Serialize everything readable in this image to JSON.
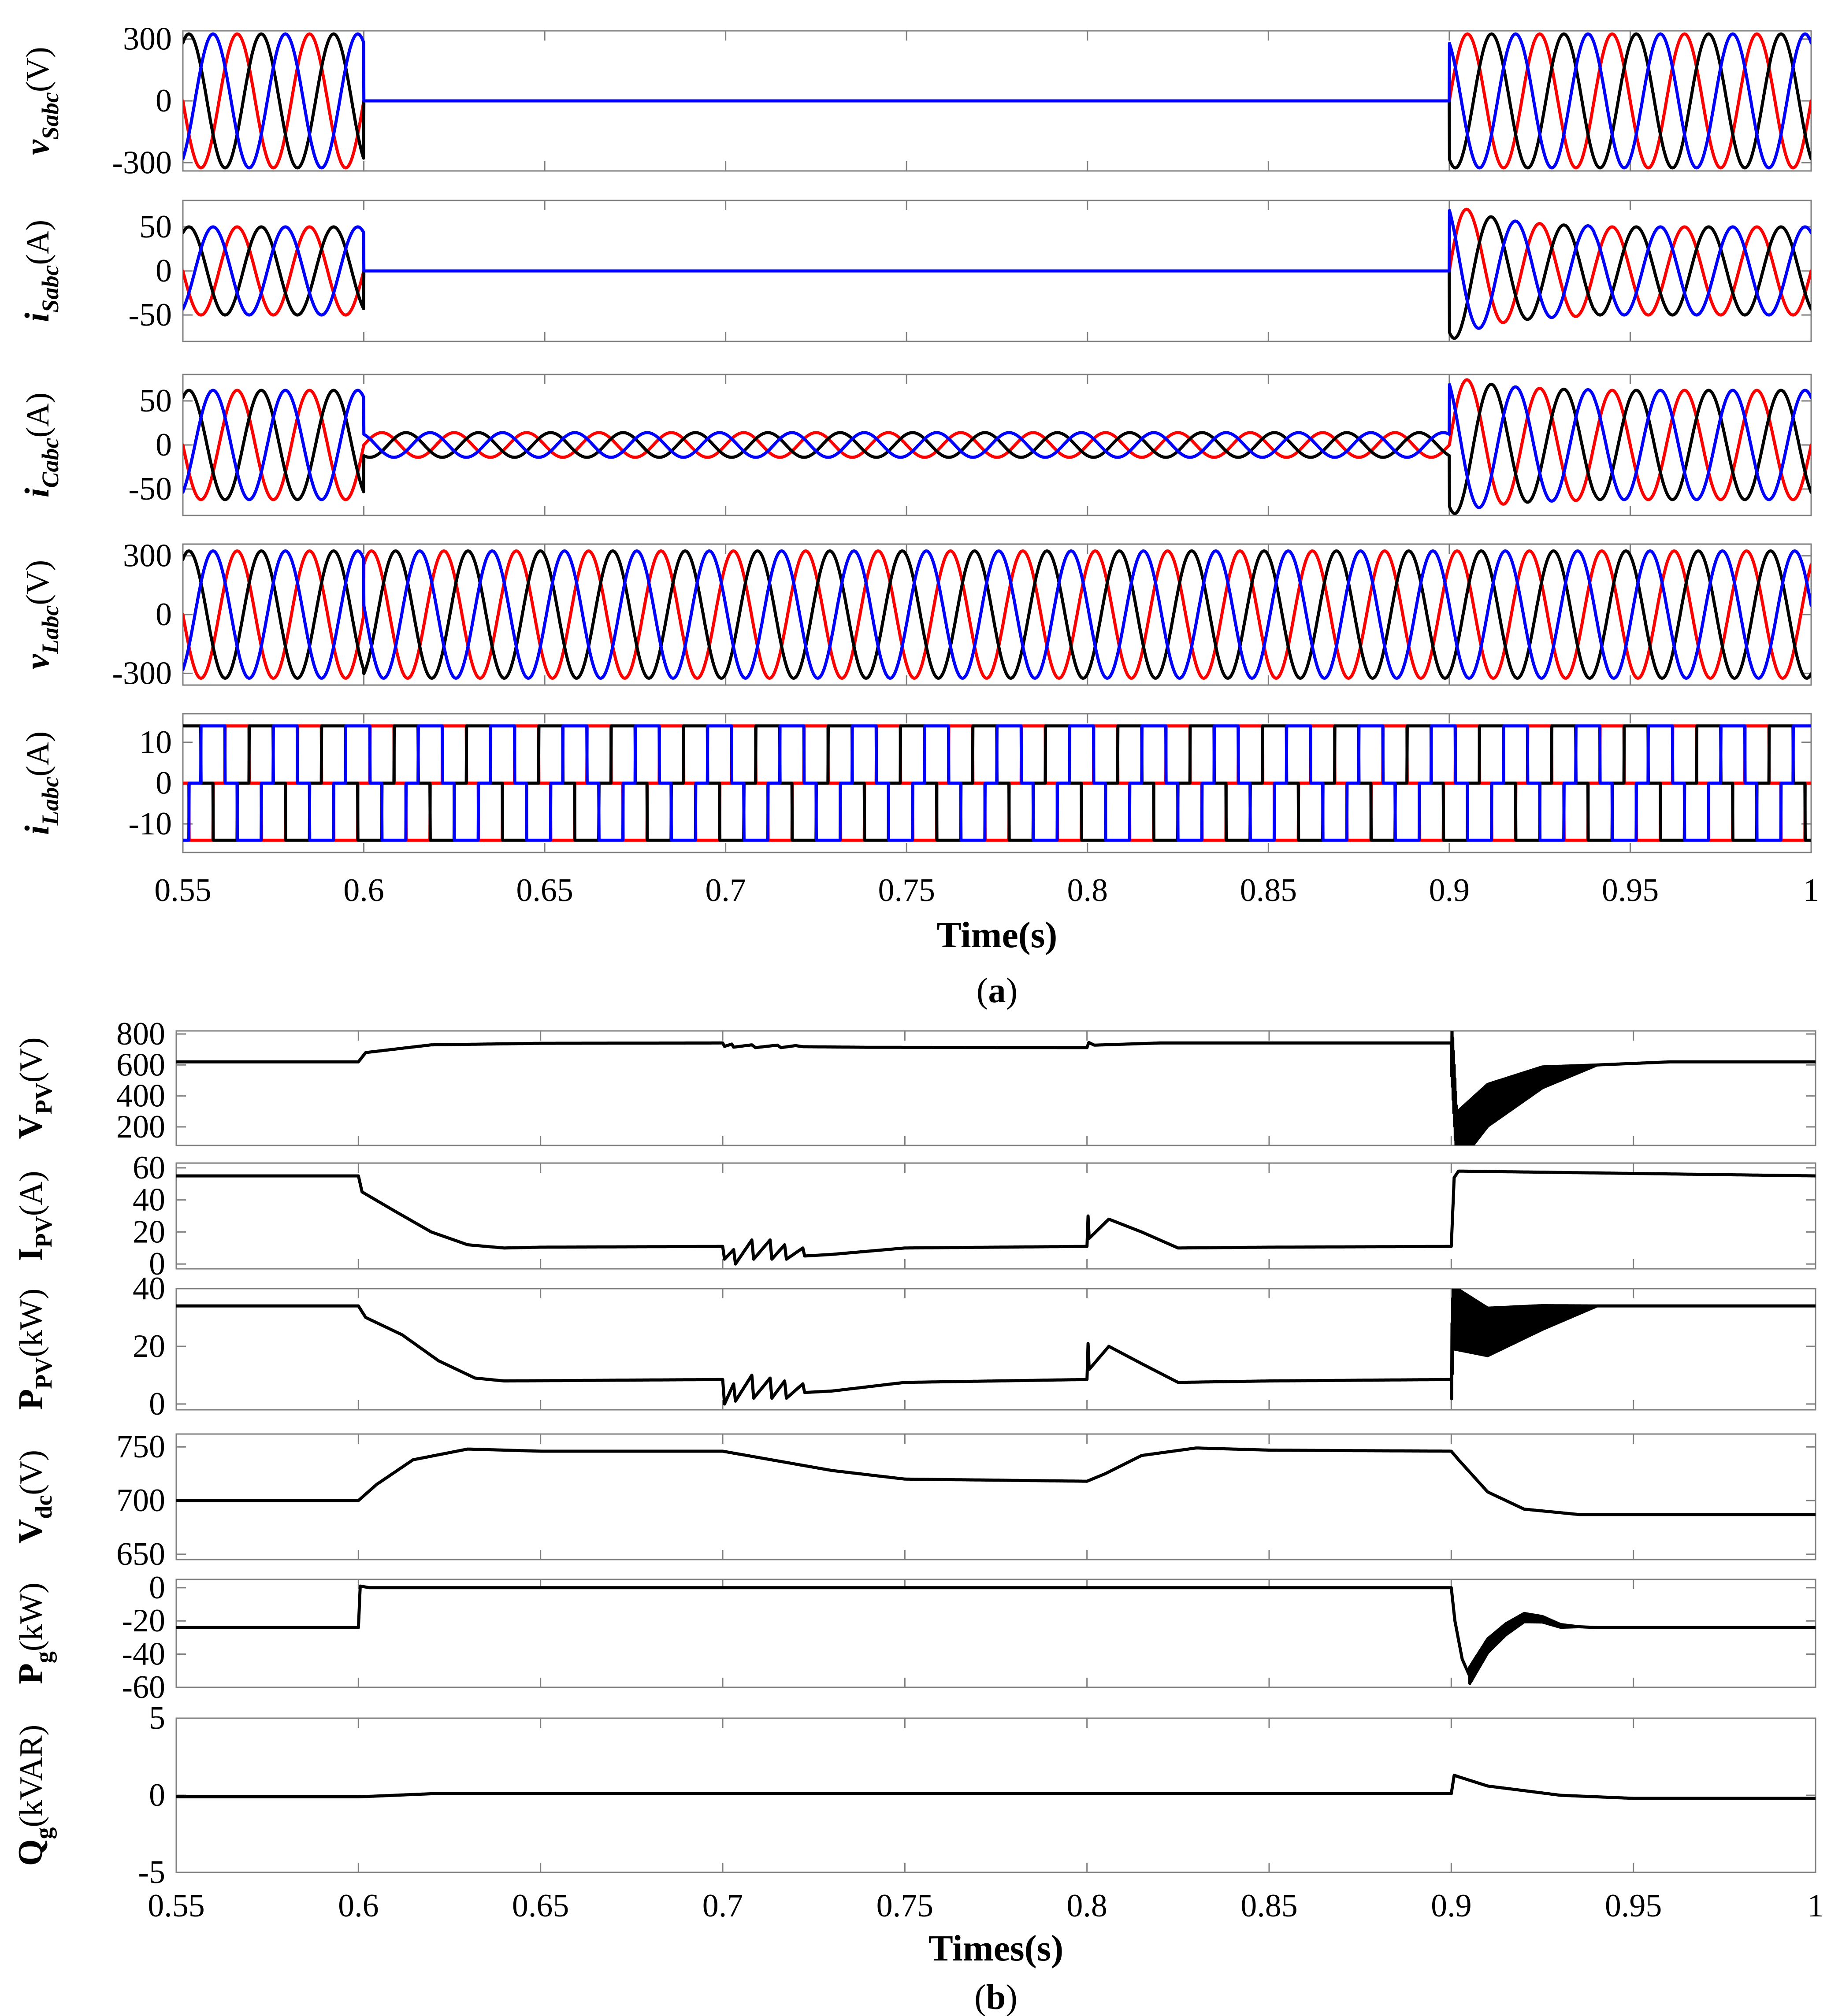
{
  "chart_data": [
    {
      "figure": "a",
      "type": "line",
      "caption_label": "a",
      "xlabel": "Time(s)",
      "xlim": [
        0.55,
        1.0
      ],
      "xticks": [
        "0.55",
        "0.6",
        "0.65",
        "0.7",
        "0.75",
        "0.8",
        "0.85",
        "0.9",
        "0.95",
        "1"
      ],
      "colors": {
        "phase_a": "#ff0000",
        "phase_b": "#000000",
        "phase_c": "#0000ff"
      },
      "events": {
        "disconnect_time": 0.6,
        "reconnect_time": 0.9,
        "frequency_hz": 50
      },
      "panels": [
        {
          "id": "vS",
          "var": "v",
          "sub": "Sabc",
          "unit": "(V)",
          "italic": true,
          "ylim": [
            -340,
            340
          ],
          "yticks": [
            300,
            0,
            -300
          ],
          "series": [
            {
              "name": "phase a",
              "kind": "sine",
              "amp_before": 325,
              "amp_during": 0,
              "amp_after": 325
            },
            {
              "name": "phase b",
              "kind": "sine",
              "amp_before": 325,
              "amp_during": 0,
              "amp_after": 325
            },
            {
              "name": "phase c",
              "kind": "sine",
              "amp_before": 325,
              "amp_during": 0,
              "amp_after": 325
            }
          ]
        },
        {
          "id": "iS",
          "var": "i",
          "sub": "Sabc",
          "unit": "(A)",
          "italic": true,
          "ylim": [
            -80,
            80
          ],
          "yticks": [
            50,
            0,
            -50
          ],
          "series": [
            {
              "name": "phase a",
              "kind": "sine",
              "amp_before": 50,
              "amp_during": 0,
              "amp_after": 50,
              "reconnect_overshoot": 80
            },
            {
              "name": "phase b",
              "kind": "sine",
              "amp_before": 50,
              "amp_during": 0,
              "amp_after": 50,
              "reconnect_overshoot": 80
            },
            {
              "name": "phase c",
              "kind": "sine",
              "amp_before": 50,
              "amp_during": 0,
              "amp_after": 50,
              "reconnect_overshoot": 80
            }
          ]
        },
        {
          "id": "iC",
          "var": "i",
          "sub": "Cabc",
          "unit": "(A)",
          "italic": true,
          "ylim": [
            -80,
            80
          ],
          "yticks": [
            50,
            0,
            -50
          ],
          "series": [
            {
              "name": "phase a",
              "kind": "sine",
              "amp_before": 62,
              "amp_during": 14,
              "amp_after": 62,
              "reconnect_overshoot": 80
            },
            {
              "name": "phase b",
              "kind": "sine",
              "amp_before": 62,
              "amp_during": 14,
              "amp_after": 62,
              "reconnect_overshoot": 80
            },
            {
              "name": "phase c",
              "kind": "sine",
              "amp_before": 62,
              "amp_during": 14,
              "amp_after": 62,
              "reconnect_overshoot": 80
            }
          ]
        },
        {
          "id": "vL",
          "var": "v",
          "sub": "Labc",
          "unit": "(V)",
          "italic": true,
          "ylim": [
            -360,
            360
          ],
          "yticks": [
            300,
            0,
            -300
          ],
          "series": [
            {
              "name": "phase a",
              "kind": "sine",
              "amp_before": 325,
              "amp_during": 325,
              "amp_after": 325
            },
            {
              "name": "phase b",
              "kind": "sine",
              "amp_before": 325,
              "amp_during": 325,
              "amp_after": 325
            },
            {
              "name": "phase c",
              "kind": "sine",
              "amp_before": 325,
              "amp_during": 325,
              "amp_after": 325
            }
          ]
        },
        {
          "id": "iL",
          "var": "i",
          "sub": "Labc",
          "unit": "(A)",
          "italic": true,
          "ylim": [
            -17,
            17
          ],
          "yticks": [
            10,
            0,
            -10
          ],
          "series": [
            {
              "name": "phase a",
              "kind": "square",
              "amp_before": 14,
              "amp_during": 14,
              "amp_after": 14
            },
            {
              "name": "phase b",
              "kind": "square",
              "amp_before": 14,
              "amp_during": 14,
              "amp_after": 14
            },
            {
              "name": "phase c",
              "kind": "square",
              "amp_before": 14,
              "amp_during": 14,
              "amp_after": 14
            }
          ]
        }
      ]
    },
    {
      "figure": "b",
      "type": "line",
      "caption_label": "b",
      "xlabel": "Times(s)",
      "xlim": [
        0.55,
        1.0
      ],
      "xticks": [
        "0.55",
        "0.6",
        "0.65",
        "0.7",
        "0.75",
        "0.8",
        "0.85",
        "0.9",
        "0.95",
        "1"
      ],
      "color": "#000000",
      "panels": [
        {
          "id": "Vpv",
          "var": "V",
          "sub": "PV",
          "unit": "(V)",
          "ylim": [
            80,
            820
          ],
          "yticks": [
            800,
            600,
            400,
            200
          ],
          "points": [
            [
              0.55,
              620
            ],
            [
              0.6,
              620
            ],
            [
              0.602,
              680
            ],
            [
              0.62,
              730
            ],
            [
              0.65,
              740
            ],
            [
              0.7,
              742
            ],
            [
              0.7005,
              720
            ],
            [
              0.7025,
              735
            ],
            [
              0.703,
              715
            ],
            [
              0.708,
              730
            ],
            [
              0.709,
              712
            ],
            [
              0.715,
              728
            ],
            [
              0.716,
              712
            ],
            [
              0.72,
              725
            ],
            [
              0.722,
              718
            ],
            [
              0.74,
              714
            ],
            [
              0.8,
              712
            ],
            [
              0.8005,
              745
            ],
            [
              0.802,
              728
            ],
            [
              0.82,
              742
            ],
            [
              0.9,
              742
            ],
            [
              0.9003,
              640
            ],
            [
              0.9015,
              120
            ],
            [
              0.91,
              340
            ],
            [
              0.925,
              520
            ],
            [
              0.94,
              600
            ],
            [
              0.96,
              620
            ],
            [
              1.0,
              620
            ]
          ],
          "ripple": {
            "from": 0.9,
            "to": 0.94,
            "amplitude": 180
          }
        },
        {
          "id": "Ipv",
          "var": "I",
          "sub": "PV",
          "unit": "(A)",
          "ylim": [
            -3,
            63
          ],
          "yticks": [
            60,
            40,
            20,
            0
          ],
          "points": [
            [
              0.55,
              55
            ],
            [
              0.6,
              55
            ],
            [
              0.601,
              45
            ],
            [
              0.61,
              33
            ],
            [
              0.62,
              20
            ],
            [
              0.63,
              12
            ],
            [
              0.64,
              10
            ],
            [
              0.65,
              10.5
            ],
            [
              0.7,
              11
            ],
            [
              0.7005,
              3
            ],
            [
              0.703,
              9
            ],
            [
              0.7035,
              0
            ],
            [
              0.708,
              15
            ],
            [
              0.7085,
              3
            ],
            [
              0.713,
              15
            ],
            [
              0.7135,
              3
            ],
            [
              0.717,
              12
            ],
            [
              0.7175,
              3
            ],
            [
              0.722,
              10
            ],
            [
              0.7225,
              5
            ],
            [
              0.73,
              6
            ],
            [
              0.75,
              10
            ],
            [
              0.8,
              11
            ],
            [
              0.8003,
              30
            ],
            [
              0.8006,
              16
            ],
            [
              0.806,
              28
            ],
            [
              0.815,
              20
            ],
            [
              0.825,
              10
            ],
            [
              0.85,
              10.5
            ],
            [
              0.9,
              11
            ],
            [
              0.9008,
              54
            ],
            [
              0.902,
              58
            ],
            [
              1.0,
              55
            ]
          ]
        },
        {
          "id": "Ppv",
          "var": "P",
          "sub": "PV",
          "unit": "(kW)",
          "ylim": [
            -2,
            40
          ],
          "yticks": [
            40,
            20,
            0
          ],
          "points": [
            [
              0.55,
              34
            ],
            [
              0.6,
              34
            ],
            [
              0.602,
              30
            ],
            [
              0.612,
              24
            ],
            [
              0.622,
              15
            ],
            [
              0.632,
              9
            ],
            [
              0.64,
              8
            ],
            [
              0.7,
              8.5
            ],
            [
              0.7005,
              0
            ],
            [
              0.703,
              7
            ],
            [
              0.7035,
              1
            ],
            [
              0.708,
              10
            ],
            [
              0.7085,
              2
            ],
            [
              0.713,
              9
            ],
            [
              0.7135,
              2
            ],
            [
              0.717,
              8
            ],
            [
              0.7175,
              2
            ],
            [
              0.722,
              7
            ],
            [
              0.7225,
              4
            ],
            [
              0.73,
              4.5
            ],
            [
              0.75,
              7.5
            ],
            [
              0.8,
              8.5
            ],
            [
              0.8003,
              21
            ],
            [
              0.8006,
              12
            ],
            [
              0.806,
              20
            ],
            [
              0.815,
              14
            ],
            [
              0.825,
              7.5
            ],
            [
              0.85,
              8
            ],
            [
              0.9,
              8.5
            ],
            [
              0.9005,
              30
            ],
            [
              0.91,
              25
            ],
            [
              0.925,
              30
            ],
            [
              0.94,
              34
            ],
            [
              1.0,
              34
            ]
          ],
          "ripple": {
            "from": 0.9,
            "to": 0.94,
            "amplitude": 11
          }
        },
        {
          "id": "Vdc",
          "var": "V",
          "sub": "dc",
          "unit": "(V)",
          "ylim": [
            645,
            762
          ],
          "yticks": [
            750,
            700,
            650
          ],
          "points": [
            [
              0.55,
              700
            ],
            [
              0.6,
              700
            ],
            [
              0.605,
              715
            ],
            [
              0.615,
              738
            ],
            [
              0.63,
              748
            ],
            [
              0.65,
              746
            ],
            [
              0.7,
              746
            ],
            [
              0.71,
              740
            ],
            [
              0.73,
              728
            ],
            [
              0.75,
              720
            ],
            [
              0.8,
              718
            ],
            [
              0.805,
              725
            ],
            [
              0.815,
              742
            ],
            [
              0.83,
              749
            ],
            [
              0.85,
              747
            ],
            [
              0.9,
              746
            ],
            [
              0.902,
              738
            ],
            [
              0.91,
              708
            ],
            [
              0.92,
              692
            ],
            [
              0.935,
              687
            ],
            [
              1.0,
              687
            ]
          ]
        },
        {
          "id": "Pg",
          "var": "P",
          "sub": "g",
          "unit": "(kW)",
          "ylim": [
            -60,
            5
          ],
          "yticks": [
            0,
            -20,
            -40,
            -60
          ],
          "points": [
            [
              0.55,
              -24
            ],
            [
              0.6,
              -24
            ],
            [
              0.6005,
              1
            ],
            [
              0.603,
              0
            ],
            [
              0.9,
              0
            ],
            [
              0.901,
              -20
            ],
            [
              0.903,
              -43
            ],
            [
              0.905,
              -53
            ],
            [
              0.91,
              -35
            ],
            [
              0.915,
              -25
            ],
            [
              0.92,
              -18
            ],
            [
              0.925,
              -19
            ],
            [
              0.93,
              -23
            ],
            [
              0.94,
              -24
            ],
            [
              1.0,
              -24
            ]
          ],
          "ripple": {
            "from": 0.905,
            "to": 0.935,
            "amplitude": 5
          }
        },
        {
          "id": "Qg",
          "var": "Q",
          "sub": "g",
          "unit": "(kVAR)",
          "ylim": [
            -5,
            5
          ],
          "yticks": [
            5,
            0,
            -5
          ],
          "points": [
            [
              0.55,
              -0.1
            ],
            [
              0.6,
              -0.1
            ],
            [
              0.62,
              0.1
            ],
            [
              0.65,
              0.1
            ],
            [
              0.9,
              0.1
            ],
            [
              0.9008,
              1.3
            ],
            [
              0.902,
              1.2
            ],
            [
              0.91,
              0.6
            ],
            [
              0.93,
              0
            ],
            [
              0.95,
              -0.2
            ],
            [
              1.0,
              -0.2
            ]
          ]
        }
      ]
    }
  ]
}
